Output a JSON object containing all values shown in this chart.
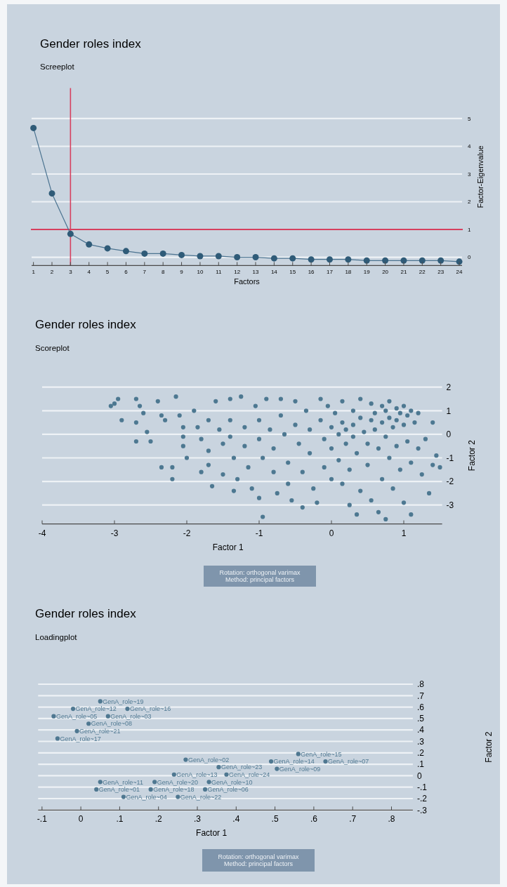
{
  "chart_data": [
    {
      "type": "line",
      "title": "Gender roles index",
      "subtitle": "Screeplot",
      "xlabel": "Factors",
      "ylabel": "Factor-Eigenvalue",
      "marker": "circle",
      "grid": "y",
      "x": [
        1,
        2,
        3,
        4,
        5,
        6,
        7,
        8,
        9,
        10,
        11,
        12,
        13,
        14,
        15,
        16,
        17,
        18,
        19,
        20,
        21,
        22,
        23,
        24
      ],
      "series": [
        {
          "color": "#2f5b78",
          "values": [
            4.66,
            2.3,
            0.84,
            0.46,
            0.32,
            0.22,
            0.13,
            0.13,
            0.08,
            0.04,
            0.04,
            0.0,
            0.0,
            -0.04,
            -0.04,
            -0.08,
            -0.08,
            -0.08,
            -0.12,
            -0.12,
            -0.12,
            -0.12,
            -0.12,
            -0.16
          ]
        }
      ],
      "xlim": [
        0.9,
        24.15
      ],
      "xticks": [
        1,
        2,
        3,
        4,
        5,
        6,
        7,
        8,
        9,
        10,
        11,
        12,
        13,
        14,
        15,
        16,
        17,
        18,
        19,
        20,
        21,
        22,
        23,
        24
      ],
      "ylim": [
        -0.3,
        6.1
      ],
      "yticks": [
        0,
        1,
        2,
        3,
        4,
        5
      ],
      "ref_lines": [
        {
          "axis": "x",
          "value": 3,
          "color": "#d6405e"
        },
        {
          "axis": "y",
          "value": 1,
          "color": "#d6405e"
        }
      ]
    },
    {
      "type": "scatter",
      "title": "Gender roles index",
      "subtitle": "Scoreplot",
      "xlabel": "Factor 1",
      "ylabel": "Factor 2",
      "marker": "circle",
      "grid": "y",
      "series": [
        {
          "color": "#4d7891",
          "x": [
            -3.0,
            -2.95,
            -3.05,
            -2.9,
            -2.7,
            -2.65,
            -2.6,
            -2.7,
            -2.55,
            -2.7,
            -2.5,
            -2.4,
            -2.35,
            -2.3,
            -2.35,
            -2.2,
            -2.2,
            -2.15,
            -2.1,
            -2.05,
            -2.05,
            -2.05,
            -2.0,
            -1.9,
            -1.85,
            -1.8,
            -1.8,
            -1.7,
            -1.7,
            -1.7,
            -1.65,
            -1.6,
            -1.55,
            -1.5,
            -1.5,
            -1.4,
            -1.4,
            -1.4,
            -1.35,
            -1.35,
            -1.3,
            -1.25,
            -1.2,
            -1.2,
            -1.15,
            -1.1,
            -1.05,
            -1.0,
            -1.0,
            -0.95,
            -1.0,
            -0.95,
            -0.9,
            -0.85,
            -0.8,
            -0.8,
            -0.75,
            -0.7,
            -0.7,
            -0.65,
            -0.6,
            -0.6,
            -0.55,
            -0.5,
            -0.5,
            -0.45,
            -0.4,
            -0.4,
            -0.35,
            -0.3,
            -0.3,
            -0.25,
            -0.2,
            -0.15,
            -0.15,
            -0.1,
            -0.1,
            -0.05,
            0.0,
            0.0,
            0.0,
            0.05,
            0.1,
            0.1,
            0.15,
            0.15,
            0.15,
            0.2,
            0.2,
            0.25,
            0.25,
            0.3,
            0.3,
            0.3,
            0.35,
            0.35,
            0.4,
            0.4,
            0.4,
            0.45,
            0.5,
            0.5,
            0.55,
            0.55,
            0.55,
            0.6,
            0.6,
            0.65,
            0.65,
            0.7,
            0.7,
            0.7,
            0.75,
            0.75,
            0.75,
            0.8,
            0.8,
            0.8,
            0.85,
            0.85,
            0.9,
            0.9,
            0.9,
            0.95,
            0.95,
            1.0,
            1.0,
            1.0,
            1.05,
            1.05,
            1.1,
            1.1,
            1.1,
            1.15,
            1.2,
            1.2,
            1.25,
            1.3,
            1.35,
            1.4,
            1.4,
            1.45,
            1.5
          ],
          "values": [
            1.3,
            1.5,
            1.2,
            0.6,
            1.5,
            1.2,
            0.9,
            0.5,
            0.1,
            -0.3,
            -0.3,
            1.4,
            0.8,
            0.6,
            -1.4,
            -1.4,
            -1.9,
            1.6,
            0.8,
            0.3,
            -0.1,
            -0.5,
            -1.0,
            1.0,
            0.3,
            -0.2,
            -1.6,
            0.6,
            -0.7,
            -1.3,
            -2.2,
            1.4,
            0.2,
            -0.4,
            -1.7,
            1.5,
            0.6,
            -0.1,
            -1.0,
            -2.4,
            -1.9,
            1.6,
            0.3,
            -0.5,
            -1.4,
            -2.3,
            1.2,
            0.6,
            -0.2,
            -1.0,
            -2.7,
            -3.5,
            1.5,
            0.2,
            -0.6,
            -1.6,
            -2.5,
            1.5,
            0.8,
            0.0,
            -1.2,
            -2.1,
            -2.8,
            1.4,
            0.4,
            -0.4,
            -1.6,
            -3.1,
            1.0,
            0.2,
            -0.8,
            -2.3,
            -2.9,
            1.5,
            0.6,
            -0.2,
            -1.4,
            1.2,
            0.3,
            -0.6,
            -1.9,
            0.9,
            0.0,
            -1.1,
            1.4,
            0.5,
            -2.1,
            0.2,
            -0.4,
            -1.5,
            -3.0,
            1.0,
            0.4,
            -0.1,
            -0.8,
            -3.4,
            1.5,
            0.7,
            -2.4,
            0.1,
            -0.4,
            -1.3,
            1.3,
            0.6,
            -2.8,
            0.9,
            0.2,
            -0.6,
            -3.3,
            1.2,
            0.5,
            -1.9,
            1.0,
            -0.1,
            -3.6,
            1.4,
            0.7,
            -1.0,
            0.3,
            -2.3,
            1.1,
            0.6,
            -0.5,
            0.9,
            -1.5,
            1.2,
            0.4,
            -2.9,
            0.8,
            -0.3,
            1.0,
            -1.2,
            -3.4,
            0.5,
            0.9,
            -0.6,
            -1.7,
            -0.2,
            -2.5,
            0.5,
            -1.3,
            -0.9,
            -1.4
          ]
        }
      ],
      "xlim": [
        -4,
        1.53
      ],
      "xticks": [
        -4,
        -3,
        -2,
        -1,
        0,
        1
      ],
      "ylim": [
        -3.8,
        2
      ],
      "yticks": [
        -3,
        -2,
        -1,
        0,
        1,
        2
      ],
      "annotations": [
        "Rotation: orthogonal varimax",
        "Method: principal factors"
      ]
    },
    {
      "type": "scatter",
      "title": "Gender roles index",
      "subtitle": "Loadingplot",
      "xlabel": "Factor 1",
      "ylabel": "Factor 2",
      "marker": "circle",
      "grid": "y",
      "series": [
        {
          "color": "#4f7891",
          "x": [
            -0.06,
            -0.01,
            0.07,
            -0.07,
            0.02,
            0.12,
            0.05,
            -0.02,
            0.27,
            0.355,
            0.56,
            0.63,
            0.49,
            0.505,
            0.375,
            0.33,
            0.04,
            0.11,
            0.32,
            0.05,
            0.24,
            0.18,
            0.19,
            0.25
          ],
          "values": [
            0.325,
            0.39,
            0.52,
            0.52,
            0.455,
            0.585,
            0.65,
            0.585,
            0.14,
            0.075,
            0.19,
            0.125,
            0.125,
            0.06,
            0.01,
            -0.055,
            -0.12,
            -0.185,
            -0.12,
            -0.055,
            0.01,
            -0.12,
            -0.055,
            -0.185
          ]
        }
      ],
      "xlim": [
        -0.11,
        0.855
      ],
      "xticks": [
        {
          "value": -0.1,
          "label": "-.1"
        },
        0,
        {
          "value": 0.1,
          "label": ".1"
        },
        {
          "value": 0.2,
          "label": ".2"
        },
        {
          "value": 0.3,
          "label": ".3"
        },
        {
          "value": 0.4,
          "label": ".4"
        },
        {
          "value": 0.5,
          "label": ".5"
        },
        {
          "value": 0.6,
          "label": ".6"
        },
        {
          "value": 0.7,
          "label": ".7"
        },
        {
          "value": 0.8,
          "label": ".8"
        }
      ],
      "ylim": [
        -0.3,
        0.8
      ],
      "yticks": [
        {
          "value": -0.3,
          "label": "-.3"
        },
        {
          "value": -0.2,
          "label": "-.2"
        },
        {
          "value": -0.1,
          "label": "-.1"
        },
        0,
        {
          "value": 0.1,
          "label": ".1"
        },
        {
          "value": 0.2,
          "label": ".2"
        },
        {
          "value": 0.3,
          "label": ".3"
        },
        {
          "value": 0.4,
          "label": ".4"
        },
        {
          "value": 0.5,
          "label": ".5"
        },
        {
          "value": 0.6,
          "label": ".6"
        },
        {
          "value": 0.7,
          "label": ".7"
        },
        {
          "value": 0.8,
          "label": ".8"
        }
      ],
      "annotations": [
        "Rotation: orthogonal varimax",
        "Method: principal factors",
        {
          "text": "GenA_role~17",
          "x": -0.06,
          "y": 0.325
        },
        {
          "text": "GenA_role~21",
          "x": -0.01,
          "y": 0.39
        },
        {
          "text": "GenA_role~03",
          "x": 0.07,
          "y": 0.52
        },
        {
          "text": "GenA_role~05",
          "x": -0.07,
          "y": 0.52
        },
        {
          "text": "GenA_role~08",
          "x": 0.02,
          "y": 0.455
        },
        {
          "text": "GenA_role~16",
          "x": 0.12,
          "y": 0.585
        },
        {
          "text": "GenA_role~19",
          "x": 0.05,
          "y": 0.65
        },
        {
          "text": "GenA_role~12",
          "x": -0.02,
          "y": 0.585
        },
        {
          "text": "GenA_role~02",
          "x": 0.27,
          "y": 0.14
        },
        {
          "text": "GenA_role~23",
          "x": 0.355,
          "y": 0.075
        },
        {
          "text": "GenA_role~15",
          "x": 0.56,
          "y": 0.19
        },
        {
          "text": "GenA_role~07",
          "x": 0.63,
          "y": 0.125
        },
        {
          "text": "GenA_role~14",
          "x": 0.49,
          "y": 0.125
        },
        {
          "text": "GenA_role~09",
          "x": 0.505,
          "y": 0.06
        },
        {
          "text": "GenA_role~24",
          "x": 0.375,
          "y": 0.01
        },
        {
          "text": "GenA_role~10",
          "x": 0.33,
          "y": -0.055
        },
        {
          "text": "GenA_role~01",
          "x": 0.04,
          "y": -0.12
        },
        {
          "text": "GenA_role~04",
          "x": 0.11,
          "y": -0.185
        },
        {
          "text": "GenA_role~06",
          "x": 0.32,
          "y": -0.12
        },
        {
          "text": "GenA_role~11",
          "x": 0.05,
          "y": -0.055
        },
        {
          "text": "GenA_role~13",
          "x": 0.24,
          "y": 0.01
        },
        {
          "text": "GenA_role~18",
          "x": 0.18,
          "y": -0.12
        },
        {
          "text": "GenA_role~20",
          "x": 0.19,
          "y": -0.055
        },
        {
          "text": "GenA_role~22",
          "x": 0.25,
          "y": -0.185
        }
      ]
    }
  ]
}
